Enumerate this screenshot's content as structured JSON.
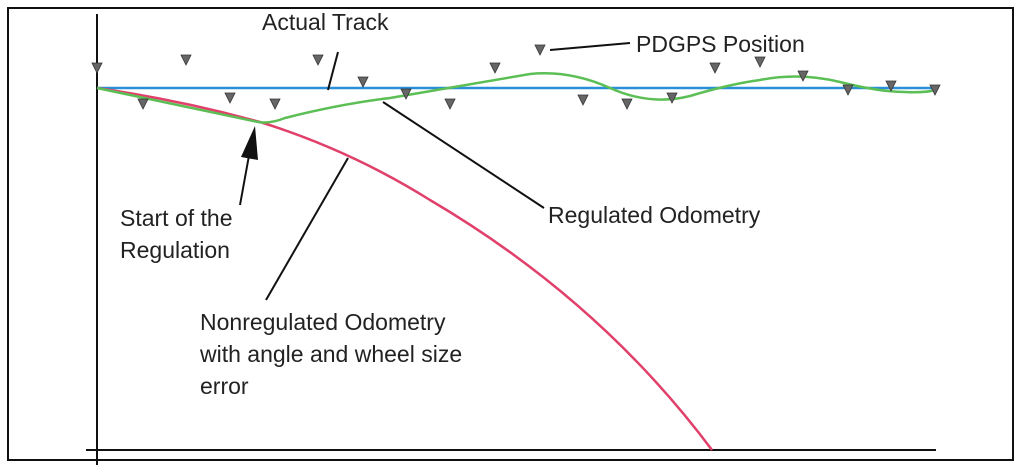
{
  "labels": {
    "actual_track": "Actual Track",
    "pdgps_position": "PDGPS Position",
    "regulated_odometry": "Regulated Odometry",
    "start_of_regulation": [
      "Start of the",
      "Regulation"
    ],
    "nonregulated_odometry": [
      "Nonregulated Odometry",
      "with angle and wheel size",
      "error"
    ]
  }
}
